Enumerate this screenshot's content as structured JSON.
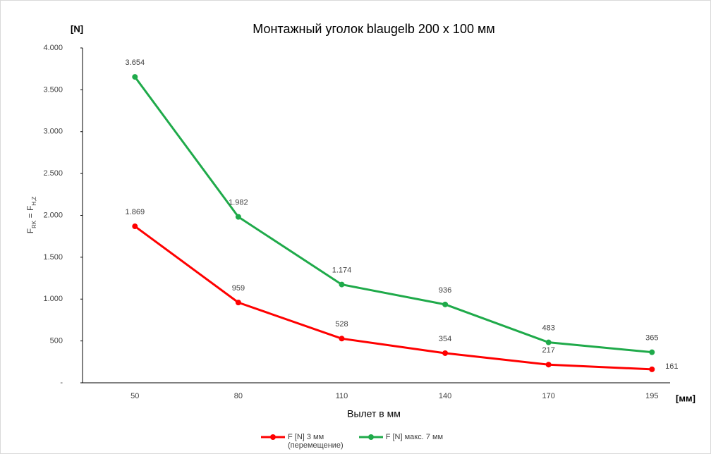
{
  "chart_data": {
    "type": "line",
    "title": "Монтажный уголок blaugelb 200 x 100 мм",
    "y_unit": "[N]",
    "x_unit": "[мм]",
    "x_label": "Вылет в мм",
    "y_label": [
      "F",
      "RK",
      " = F",
      "H,Z"
    ],
    "categories": [
      "50",
      "80",
      "110",
      "140",
      "170",
      "195"
    ],
    "series": [
      {
        "name": "F [N] 3 мм\n(перемещение)",
        "color": "#ff0000",
        "values": [
          1869,
          959,
          528,
          354,
          217,
          161
        ],
        "value_labels": [
          "1.869",
          "959",
          "528",
          "354",
          "217",
          "161"
        ]
      },
      {
        "name": "F [N] макс. 7 мм",
        "color": "#1faa4a",
        "values": [
          3654,
          1982,
          1174,
          936,
          483,
          365
        ],
        "value_labels": [
          "3.654",
          "1.982",
          "1.174",
          "936",
          "483",
          "365"
        ]
      }
    ],
    "ylim": [
      0,
      4000
    ],
    "yticks": [
      {
        "value": 0,
        "label": "-"
      },
      500,
      {
        "value": 1000,
        "label": "1.000"
      },
      {
        "value": 1500,
        "label": "1.500"
      },
      {
        "value": 2000,
        "label": "2.000"
      },
      {
        "value": 2500,
        "label": "2.500"
      },
      {
        "value": 3000,
        "label": "3.000"
      },
      {
        "value": 3500,
        "label": "3.500"
      },
      {
        "value": 4000,
        "label": "4.000"
      }
    ],
    "grid": false,
    "legend": "bottom"
  }
}
